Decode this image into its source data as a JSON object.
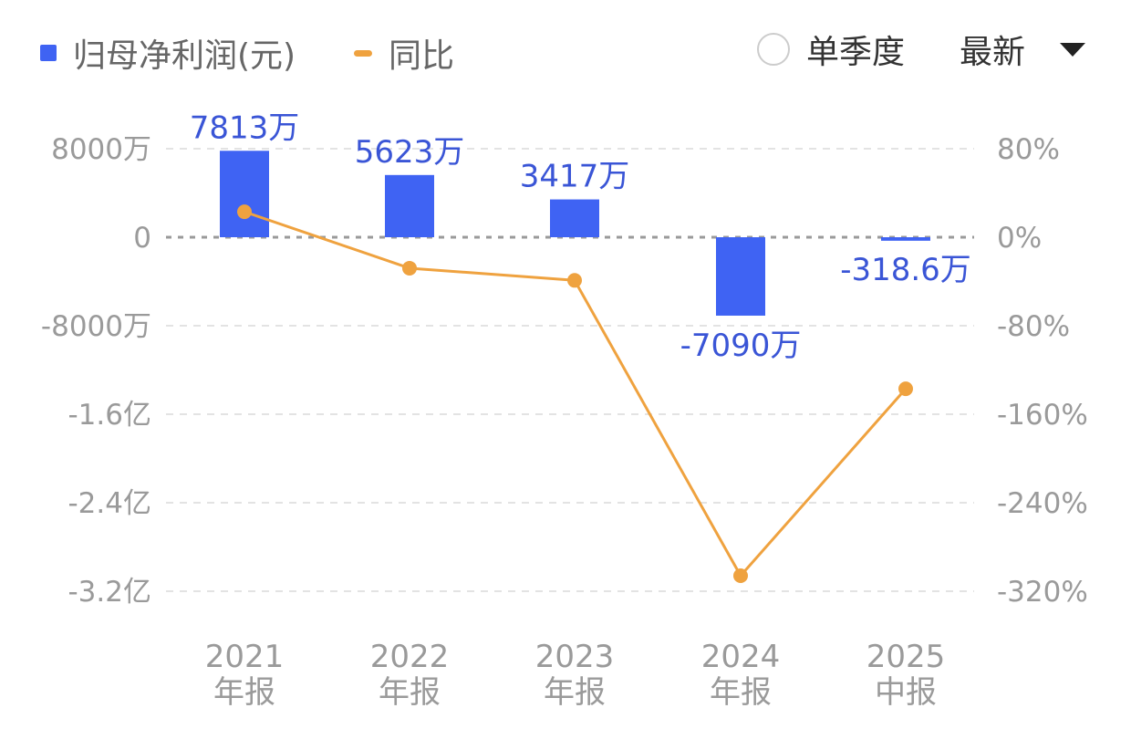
{
  "legend": {
    "bar_label": "归母净利润(元)",
    "line_label": "同比"
  },
  "controls": {
    "single_quarter_label": "单季度",
    "latest_label": "最新"
  },
  "colors": {
    "bar": "#3f63f3",
    "line": "#efa23f",
    "data_label": "#3a55d6"
  },
  "chart_data": {
    "type": "bar",
    "categories": [
      [
        "2021",
        "年报"
      ],
      [
        "2022",
        "年报"
      ],
      [
        "2023",
        "年报"
      ],
      [
        "2024",
        "年报"
      ],
      [
        "2025",
        "中报"
      ]
    ],
    "series": [
      {
        "name": "归母净利润(元)",
        "type": "bar",
        "axis": "left",
        "values": [
          78130000,
          56230000,
          34170000,
          -70900000,
          -3186000
        ],
        "labels": [
          "7813万",
          "5623万",
          "3417万",
          "-7090万",
          "-318.6万"
        ]
      },
      {
        "name": "同比",
        "type": "line",
        "axis": "right",
        "values": [
          23,
          -28,
          -39,
          -306,
          -137
        ]
      }
    ],
    "y_left": {
      "ticks": [
        80000000,
        0,
        -80000000,
        -160000000,
        -240000000,
        -320000000
      ],
      "tick_labels": [
        "8000万",
        "0",
        "-8000万",
        "-1.6亿",
        "-2.4亿",
        "-3.2亿"
      ],
      "range": [
        -320000000,
        80000000
      ]
    },
    "y_right": {
      "ticks": [
        80,
        0,
        -80,
        -160,
        -240,
        -320
      ],
      "tick_labels": [
        "80%",
        "0%",
        "-80%",
        "-160%",
        "-240%",
        "-320%"
      ],
      "range": [
        -320,
        80
      ]
    },
    "grid": true,
    "legend_position": "top-left"
  }
}
